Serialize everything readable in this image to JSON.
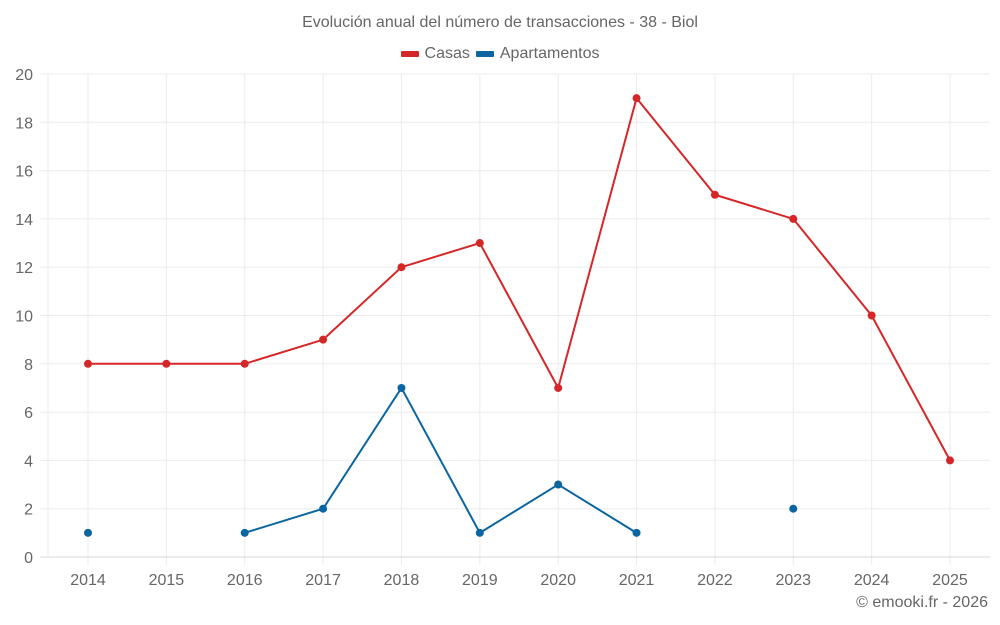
{
  "chart_data": {
    "type": "line",
    "title": "Evolución anual del número de transacciones - 38 - Biol",
    "xlabel": "",
    "ylabel": "",
    "categories": [
      "2014",
      "2015",
      "2016",
      "2017",
      "2018",
      "2019",
      "2020",
      "2021",
      "2022",
      "2023",
      "2024",
      "2025"
    ],
    "series": [
      {
        "name": "Casas",
        "color": "#d62728",
        "values": [
          8,
          8,
          8,
          9,
          12,
          13,
          7,
          19,
          15,
          14,
          10,
          4
        ]
      },
      {
        "name": "Apartamentos",
        "color": "#0a65a0",
        "values": [
          1,
          null,
          1,
          2,
          7,
          1,
          3,
          1,
          null,
          2,
          null,
          null
        ]
      }
    ],
    "ylim": [
      0,
      20
    ],
    "yticks": [
      0,
      2,
      4,
      6,
      8,
      10,
      12,
      14,
      16,
      18,
      20
    ],
    "grid": true,
    "legend_position": "top"
  },
  "credit": "© emooki.fr - 2026"
}
